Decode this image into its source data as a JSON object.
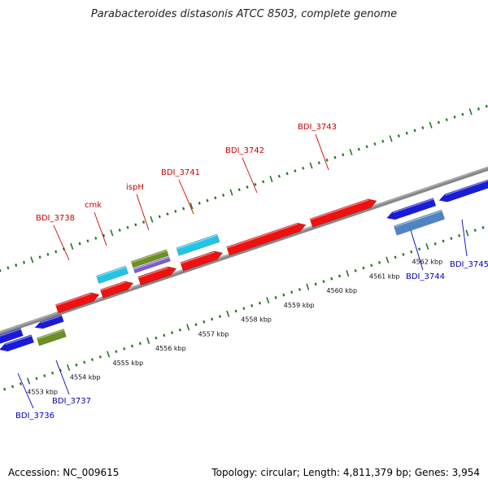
{
  "title": "Parabacteroides distasonis ATCC 8503, complete genome",
  "footer": {
    "accession": "Accession: NC_009615",
    "stats": "Topology: circular; Length: 4,811,379 bp; Genes: 3,954"
  },
  "colors": {
    "cds": "#ee1111",
    "cds_minus": "#1a1ad9",
    "trna_like": "#22c4e6",
    "olive": "#6e8f22",
    "purple": "#7a5bd6",
    "steelblue": "#4f84c4",
    "label_plus": "#cc0000",
    "label_minus": "#0000bb",
    "tick": "#1f7a1f",
    "backbone": "#888888"
  },
  "scale": {
    "ticks": [
      {
        "kbp": 4553,
        "label": "4553 kbp"
      },
      {
        "kbp": 4554,
        "label": "4554 kbp"
      },
      {
        "kbp": 4555,
        "label": "4555 kbp"
      },
      {
        "kbp": 4556,
        "label": "4556 kbp"
      },
      {
        "kbp": 4557,
        "label": "4557 kbp"
      },
      {
        "kbp": 4558,
        "label": "4558 kbp"
      },
      {
        "kbp": 4559,
        "label": "4559 kbp"
      },
      {
        "kbp": 4560,
        "label": "4560 kbp"
      },
      {
        "kbp": 4561,
        "label": "4561 kbp"
      },
      {
        "kbp": 4562,
        "label": "4562 kbp"
      }
    ]
  },
  "gene_labels": [
    {
      "name": "BDI_3738",
      "strand": "plus"
    },
    {
      "name": "cmk",
      "strand": "plus"
    },
    {
      "name": "ispH",
      "strand": "plus"
    },
    {
      "name": "BDI_3741",
      "strand": "plus"
    },
    {
      "name": "BDI_3742",
      "strand": "plus"
    },
    {
      "name": "BDI_3743",
      "strand": "plus"
    },
    {
      "name": "BDI_3736",
      "strand": "minus"
    },
    {
      "name": "BDI_3737",
      "strand": "minus"
    },
    {
      "name": "BDI_3744",
      "strand": "minus"
    },
    {
      "name": "BDI_3745",
      "strand": "minus"
    }
  ]
}
